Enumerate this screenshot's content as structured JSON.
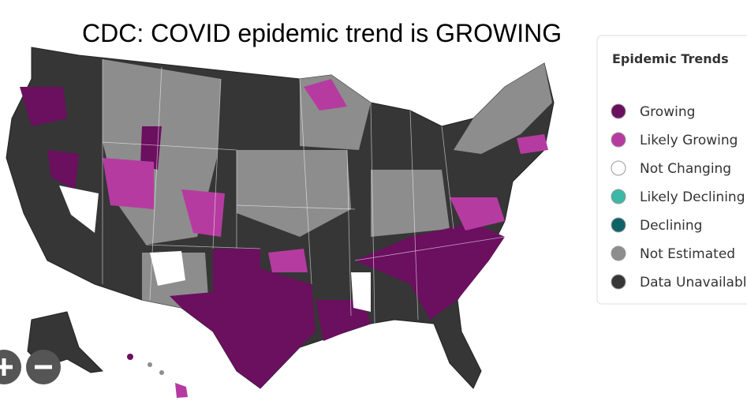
{
  "header": {
    "title": "CDC: COVID epidemic trend is GROWING"
  },
  "legend": {
    "title": "Epidemic Trends",
    "items": [
      {
        "label": "Growing",
        "color": "#6b0f5f"
      },
      {
        "label": "Likely Growing",
        "color": "#b63ba1"
      },
      {
        "label": "Not Changing",
        "color": "#ffffff"
      },
      {
        "label": "Likely Declining",
        "color": "#3bb8a6"
      },
      {
        "label": "Declining",
        "color": "#0e6367"
      },
      {
        "label": "Not Estimated",
        "color": "#8d8d8d"
      },
      {
        "label": "Data Unavailable",
        "color": "#363636"
      }
    ]
  }
}
